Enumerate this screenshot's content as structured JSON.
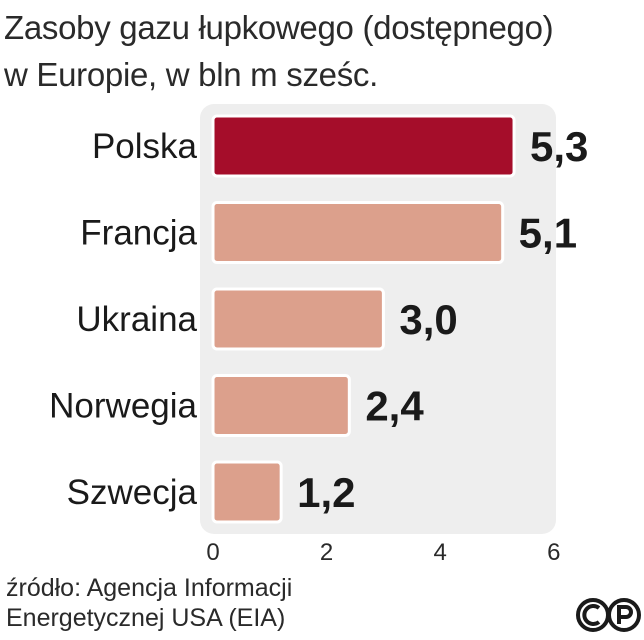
{
  "title_line1": "Zasoby gazu łupkowego (dostępnego)",
  "title_line2": "w Europie, w bln m sześc.",
  "source_line1": "źródło: Agencja Informacji",
  "source_line2": "Energetycznej USA (EIA)",
  "logo_text": "©P",
  "colors": {
    "highlight_bar": "#a50d2a",
    "bar": "#dca08c",
    "plot_background": "#eeeeee",
    "value_text": "#1a1a1a"
  },
  "chart_data": {
    "type": "bar",
    "orientation": "horizontal",
    "categories": [
      "Polska",
      "Francja",
      "Ukraina",
      "Norwegia",
      "Szwecja"
    ],
    "values": [
      5.3,
      5.1,
      3.0,
      2.4,
      1.2
    ],
    "value_labels": [
      "5,3",
      "5,1",
      "3,0",
      "2,4",
      "1,2"
    ],
    "highlighted_category": "Polska",
    "xlim": [
      0,
      6
    ],
    "xticks": [
      0,
      2,
      4,
      6
    ],
    "grid": false
  }
}
